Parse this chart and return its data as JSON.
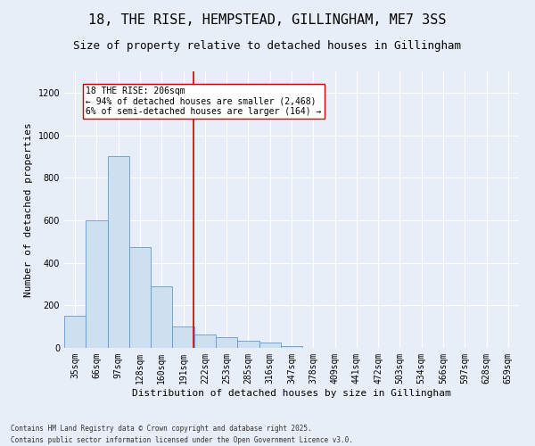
{
  "title1": "18, THE RISE, HEMPSTEAD, GILLINGHAM, ME7 3SS",
  "title2": "Size of property relative to detached houses in Gillingham",
  "xlabel": "Distribution of detached houses by size in Gillingham",
  "ylabel": "Number of detached properties",
  "categories": [
    "35sqm",
    "66sqm",
    "97sqm",
    "128sqm",
    "160sqm",
    "191sqm",
    "222sqm",
    "253sqm",
    "285sqm",
    "316sqm",
    "347sqm",
    "378sqm",
    "409sqm",
    "441sqm",
    "472sqm",
    "503sqm",
    "534sqm",
    "566sqm",
    "597sqm",
    "628sqm",
    "659sqm"
  ],
  "values": [
    150,
    600,
    900,
    475,
    290,
    100,
    65,
    50,
    35,
    25,
    10,
    0,
    0,
    0,
    0,
    0,
    0,
    0,
    0,
    0,
    0
  ],
  "bar_color": "#cce0f0",
  "bar_edge_color": "#6699cc",
  "vline_color": "#cc0000",
  "annotation_text": "18 THE RISE: 206sqm\n← 94% of detached houses are smaller (2,468)\n6% of semi-detached houses are larger (164) →",
  "annotation_box_color": "#ffffff",
  "annotation_box_edge": "#cc0000",
  "ylim": [
    0,
    1300
  ],
  "yticks": [
    0,
    200,
    400,
    600,
    800,
    1000,
    1200
  ],
  "bg_color": "#e8eef8",
  "plot_bg_color": "#e8eef8",
  "footer1": "Contains HM Land Registry data © Crown copyright and database right 2025.",
  "footer2": "Contains public sector information licensed under the Open Government Licence v3.0.",
  "title1_fontsize": 11,
  "title2_fontsize": 9,
  "tick_fontsize": 7,
  "label_fontsize": 8,
  "annotation_fontsize": 7,
  "footer_fontsize": 5.5
}
